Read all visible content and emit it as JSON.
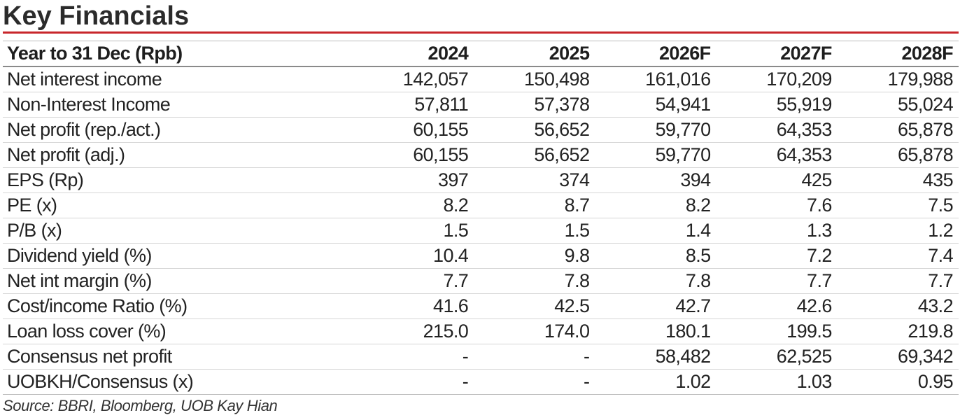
{
  "title": "Key Financials",
  "accent_color": "#c8262b",
  "table": {
    "header": [
      "Year to 31 Dec (Rpb)",
      "2024",
      "2025",
      "2026F",
      "2027F",
      "2028F"
    ],
    "rows": [
      [
        "Net interest income",
        "142,057",
        "150,498",
        "161,016",
        "170,209",
        "179,988"
      ],
      [
        "Non-Interest Income",
        "57,811",
        "57,378",
        "54,941",
        "55,919",
        "55,024"
      ],
      [
        "Net profit (rep./act.)",
        "60,155",
        "56,652",
        "59,770",
        "64,353",
        "65,878"
      ],
      [
        "Net profit (adj.)",
        "60,155",
        "56,652",
        "59,770",
        "64,353",
        "65,878"
      ],
      [
        "EPS (Rp)",
        "397",
        "374",
        "394",
        "425",
        "435"
      ],
      [
        "PE (x)",
        "8.2",
        "8.7",
        "8.2",
        "7.6",
        "7.5"
      ],
      [
        "P/B (x)",
        "1.5",
        "1.5",
        "1.4",
        "1.3",
        "1.2"
      ],
      [
        "Dividend yield (%)",
        "10.4",
        "9.8",
        "8.5",
        "7.2",
        "7.4"
      ],
      [
        "Net int margin (%)",
        "7.7",
        "7.8",
        "7.8",
        "7.7",
        "7.7"
      ],
      [
        "Cost/income Ratio (%)",
        "41.6",
        "42.5",
        "42.7",
        "42.6",
        "43.2"
      ],
      [
        "Loan loss cover (%)",
        "215.0",
        "174.0",
        "180.1",
        "199.5",
        "219.8"
      ],
      [
        "Consensus net profit",
        "-",
        "-",
        "58,482",
        "62,525",
        "69,342"
      ],
      [
        "UOBKH/Consensus (x)",
        "-",
        "-",
        "1.02",
        "1.03",
        "0.95"
      ]
    ]
  },
  "source": "Source: BBRI, Bloomberg, UOB Kay Hian"
}
